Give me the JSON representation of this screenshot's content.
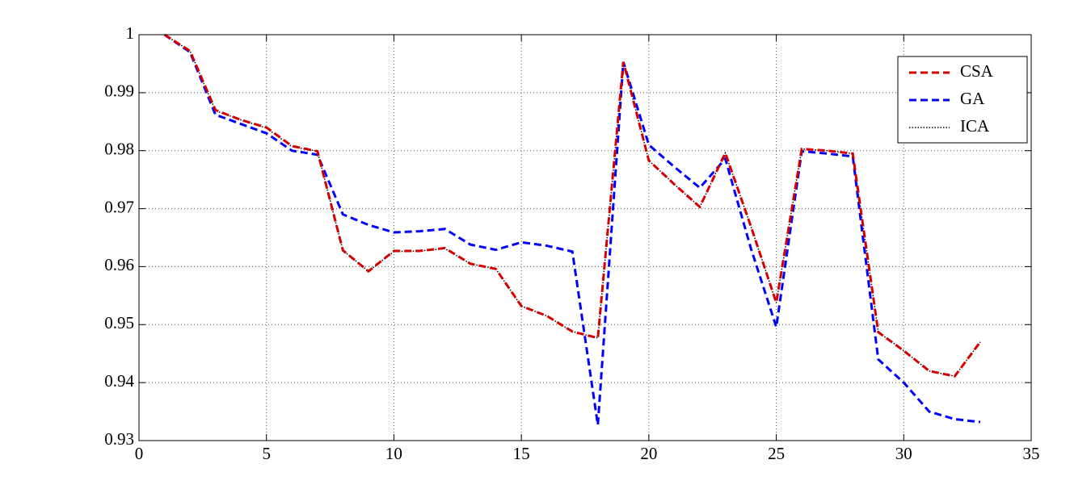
{
  "chart_data": {
    "type": "line",
    "x": [
      1,
      2,
      3,
      4,
      5,
      6,
      7,
      8,
      9,
      10,
      11,
      12,
      13,
      14,
      15,
      16,
      17,
      18,
      19,
      20,
      21,
      22,
      23,
      24,
      25,
      26,
      27,
      28,
      29,
      30,
      31,
      32,
      33
    ],
    "series": [
      {
        "name": "CSA",
        "color": "#d40000",
        "line_style": "dashed",
        "values": [
          1.0,
          0.9972,
          0.987,
          0.9853,
          0.984,
          0.9808,
          0.9799,
          0.9628,
          0.9592,
          0.9627,
          0.9627,
          0.9632,
          0.9605,
          0.9596,
          0.9532,
          0.9515,
          0.9488,
          0.9477,
          0.9953,
          0.9783,
          0.9742,
          0.9703,
          0.9796,
          0.967,
          0.9538,
          0.9803,
          0.98,
          0.9795,
          0.9487,
          0.9455,
          0.942,
          0.9411,
          0.947
        ]
      },
      {
        "name": "GA",
        "color": "#0000ff",
        "line_style": "dashed",
        "values": [
          1.0,
          0.997,
          0.9862,
          0.9846,
          0.983,
          0.98,
          0.9793,
          0.969,
          0.9672,
          0.9659,
          0.9661,
          0.9665,
          0.9638,
          0.9629,
          0.9642,
          0.9636,
          0.9626,
          0.9327,
          0.9953,
          0.981,
          0.9772,
          0.9736,
          0.9786,
          0.9632,
          0.9496,
          0.9799,
          0.9795,
          0.979,
          0.944,
          0.94,
          0.935,
          0.9337,
          0.9332
        ]
      },
      {
        "name": "ICA",
        "color": "#000000",
        "line_style": "dotted",
        "values": [
          1.0,
          0.9972,
          0.9869,
          0.9853,
          0.9839,
          0.9807,
          0.9799,
          0.9628,
          0.9592,
          0.9626,
          0.9627,
          0.9631,
          0.9605,
          0.9596,
          0.9532,
          0.9515,
          0.9488,
          0.9477,
          0.9953,
          0.9783,
          0.9742,
          0.9703,
          0.9796,
          0.967,
          0.9538,
          0.9803,
          0.98,
          0.9795,
          0.9487,
          0.9455,
          0.942,
          0.9411,
          0.947
        ]
      }
    ],
    "xlim": [
      0,
      35
    ],
    "xticks": [
      0,
      5,
      10,
      15,
      20,
      25,
      30,
      35
    ],
    "ylim": [
      0.93,
      1
    ],
    "yticks": [
      0.93,
      0.94,
      0.95,
      0.96,
      0.97,
      0.98,
      0.99,
      1
    ],
    "grid": true,
    "legend": "upper right"
  }
}
